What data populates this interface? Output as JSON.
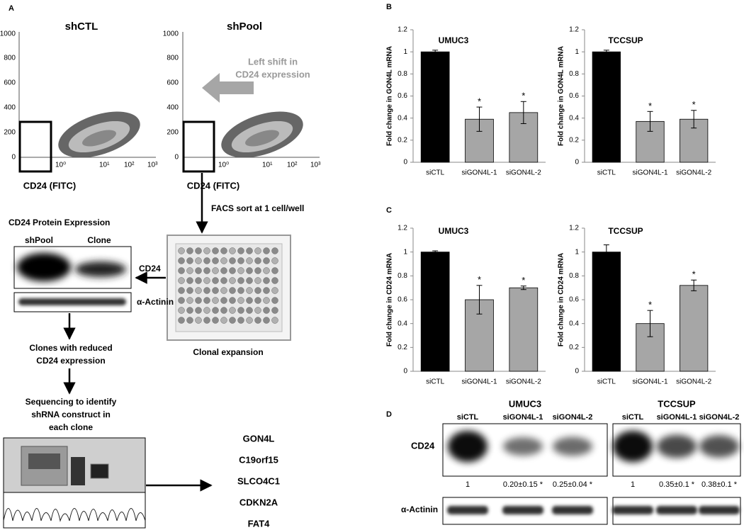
{
  "panels": {
    "a": "A",
    "b": "B",
    "c": "C",
    "d": "D"
  },
  "diagram": {
    "flow_titles": [
      "shCTL",
      "shPool"
    ],
    "flow_xlabel": "CD24 (FITC)",
    "flow_yticks": [
      "0",
      "200",
      "400",
      "600",
      "800",
      "1000"
    ],
    "flow_xticks": [
      "10⁰",
      "10¹",
      "10²",
      "10³"
    ],
    "shift_note": [
      "Left shift in",
      "CD24 expression"
    ],
    "facs_step": "FACS sort at 1 cell/well",
    "expansion_step": "Clonal expansion",
    "protein_title": "CD24 Protein Expression",
    "protein_lanes": [
      "shPool",
      "Clone"
    ],
    "protein_rows": [
      "CD24",
      "α-Actinin"
    ],
    "clones_step": [
      "Clones with reduced",
      "CD24 expression"
    ],
    "sequencing_step": [
      "Sequencing to identify",
      "shRNA construct in",
      "each clone"
    ],
    "genes": [
      "GON4L",
      "C19orf15",
      "SLCO4C1",
      "CDKN2A",
      "FAT4"
    ]
  },
  "blots": {
    "groups": [
      {
        "title": "UMUC3",
        "lanes": [
          "siCTL",
          "siGON4L-1",
          "siGON4L-2"
        ],
        "quant": [
          "1",
          "0.20±0.15 *",
          "0.25±0.04 *"
        ]
      },
      {
        "title": "TCCSUP",
        "lanes": [
          "siCTL",
          "siGON4L-1",
          "siGON4L-2"
        ],
        "quant": [
          "1",
          "0.35±0.1 *",
          "0.38±0.1 *"
        ]
      }
    ],
    "rows": [
      "CD24",
      "α-Actinin"
    ]
  },
  "chart_data": [
    {
      "type": "bar",
      "title": "UMUC3",
      "ylabel": "Fold change in GON4L mRNA",
      "categories": [
        "siCTL",
        "siGON4L-1",
        "siGON4L-2"
      ],
      "values": [
        1,
        0.39,
        0.45
      ],
      "errors": [
        0.015,
        0.11,
        0.1
      ],
      "marks": [
        null,
        "*",
        "*"
      ],
      "colors": [
        "#000000",
        "#a6a6a6",
        "#a6a6a6"
      ],
      "ylim": [
        0,
        1.2
      ],
      "yticks": [
        0,
        0.2,
        0.4,
        0.6,
        0.8,
        1,
        1.2
      ]
    },
    {
      "type": "bar",
      "title": "TCCSUP",
      "ylabel": "Fold change in GON4L mRNA",
      "categories": [
        "siCTL",
        "siGON4L-1",
        "siGON4L-2"
      ],
      "values": [
        1,
        0.37,
        0.39
      ],
      "errors": [
        0.015,
        0.09,
        0.08
      ],
      "marks": [
        null,
        "*",
        "*"
      ],
      "colors": [
        "#000000",
        "#a6a6a6",
        "#a6a6a6"
      ],
      "ylim": [
        0,
        1.2
      ],
      "yticks": [
        0,
        0.2,
        0.4,
        0.6,
        0.8,
        1,
        1.2
      ]
    },
    {
      "type": "bar",
      "title": "UMUC3",
      "ylabel": "Fold change in CD24 mRNA",
      "categories": [
        "siCTL",
        "siGON4L-1",
        "siGON4L-2"
      ],
      "values": [
        1,
        0.6,
        0.7
      ],
      "errors": [
        0.01,
        0.12,
        0.015
      ],
      "marks": [
        null,
        "*",
        "*"
      ],
      "colors": [
        "#000000",
        "#a6a6a6",
        "#a6a6a6"
      ],
      "ylim": [
        0,
        1.2
      ],
      "yticks": [
        0,
        0.2,
        0.4,
        0.6,
        0.8,
        1,
        1.2
      ]
    },
    {
      "type": "bar",
      "title": "TCCSUP",
      "ylabel": "Fold change in CD24 mRNA",
      "categories": [
        "siCTL",
        "siGON4L-1",
        "siGON4L-2"
      ],
      "values": [
        1,
        0.4,
        0.72
      ],
      "errors": [
        0.06,
        0.11,
        0.045
      ],
      "marks": [
        null,
        "*",
        "*"
      ],
      "colors": [
        "#000000",
        "#a6a6a6",
        "#a6a6a6"
      ],
      "ylim": [
        0,
        1.2
      ],
      "yticks": [
        0,
        0.2,
        0.4,
        0.6,
        0.8,
        1,
        1.2
      ]
    }
  ]
}
